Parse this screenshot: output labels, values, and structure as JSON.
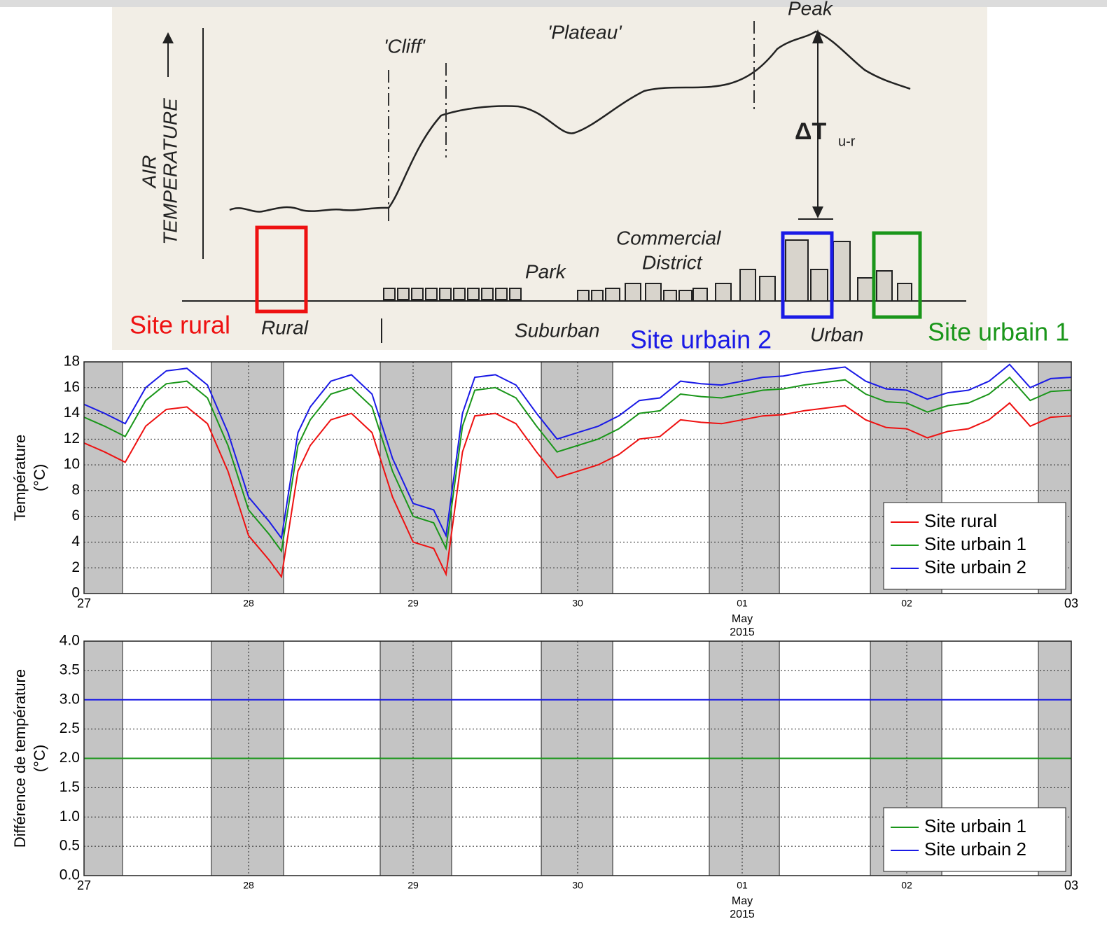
{
  "diagram": {
    "axis_label_1": "AIR",
    "axis_label_2": "TEMPERATURE",
    "cliff": "'Cliff'",
    "plateau": "'Plateau'",
    "peak": "Peak",
    "delta": "ΔT",
    "delta_sub": "u-r",
    "park": "Park",
    "commercial": "Commercial",
    "district": "District",
    "rural": "Rural",
    "suburban": "Suburban",
    "urban": "Urban",
    "sites": [
      {
        "label": "Site rural",
        "color": "#ee1111"
      },
      {
        "label": "Site urbain 2",
        "color": "#1a1ae6"
      },
      {
        "label": "Site urbain 1",
        "color": "#1a961a"
      }
    ]
  },
  "chart_data": [
    {
      "type": "line",
      "ylabel": [
        "Température",
        "(°C)"
      ],
      "x": [
        0,
        0.125,
        0.25,
        0.375,
        0.5,
        0.625,
        0.75,
        0.875,
        1.0,
        1.125,
        1.2,
        1.3,
        1.375,
        1.5,
        1.625,
        1.75,
        1.875,
        2.0,
        2.125,
        2.2,
        2.3,
        2.375,
        2.5,
        2.625,
        2.75,
        2.875,
        3.0,
        3.125,
        3.25,
        3.375,
        3.5,
        3.625,
        3.75,
        3.875,
        4.0,
        4.125,
        4.25,
        4.375,
        4.5,
        4.625,
        4.75,
        4.875,
        5.0,
        5.125,
        5.25,
        5.375,
        5.5,
        5.625,
        5.75,
        5.875,
        6.0
      ],
      "series": [
        {
          "name": "Site rural",
          "color": "#ee1111",
          "values": [
            11.7,
            11.0,
            10.2,
            13.0,
            14.3,
            14.5,
            13.2,
            9.5,
            4.5,
            2.6,
            1.3,
            9.5,
            11.5,
            13.5,
            14.0,
            12.5,
            7.5,
            4.0,
            3.5,
            1.5,
            11.0,
            13.8,
            14.0,
            13.2,
            11.0,
            9.0,
            9.5,
            10.0,
            10.8,
            12.0,
            12.2,
            13.5,
            13.3,
            13.2,
            13.5,
            13.8,
            13.9,
            14.2,
            14.4,
            14.6,
            13.5,
            12.9,
            12.8,
            12.1,
            12.6,
            12.8,
            13.5,
            14.8,
            13.0,
            13.7,
            13.8
          ]
        },
        {
          "name": "Site urbain 1",
          "color": "#1a961a",
          "values": [
            13.7,
            13.0,
            12.2,
            15.0,
            16.3,
            16.5,
            15.2,
            11.5,
            6.5,
            4.6,
            3.3,
            11.5,
            13.5,
            15.5,
            16.0,
            14.5,
            9.5,
            6.0,
            5.5,
            3.5,
            13.0,
            15.8,
            16.0,
            15.2,
            13.0,
            11.0,
            11.5,
            12.0,
            12.8,
            14.0,
            14.2,
            15.5,
            15.3,
            15.2,
            15.5,
            15.8,
            15.9,
            16.2,
            16.4,
            16.6,
            15.5,
            14.9,
            14.8,
            14.1,
            14.6,
            14.8,
            15.5,
            16.8,
            15.0,
            15.7,
            15.8
          ]
        },
        {
          "name": "Site urbain 2",
          "color": "#1a1ae6",
          "values": [
            14.7,
            14.0,
            13.2,
            16.0,
            17.3,
            17.5,
            16.2,
            12.5,
            7.5,
            5.6,
            4.3,
            12.5,
            14.5,
            16.5,
            17.0,
            15.5,
            10.5,
            7.0,
            6.5,
            4.5,
            14.0,
            16.8,
            17.0,
            16.2,
            14.0,
            12.0,
            12.5,
            13.0,
            13.8,
            15.0,
            15.2,
            16.5,
            16.3,
            16.2,
            16.5,
            16.8,
            16.9,
            17.2,
            17.4,
            17.6,
            16.5,
            15.9,
            15.8,
            15.1,
            15.6,
            15.8,
            16.5,
            17.8,
            16.0,
            16.7,
            16.8
          ]
        }
      ],
      "xlim": [
        0,
        6
      ],
      "xticks": [
        {
          "value": 0,
          "label": "27"
        },
        {
          "value": 1,
          "label": "28"
        },
        {
          "value": 2,
          "label": "29"
        },
        {
          "value": 3,
          "label": "30"
        },
        {
          "value": 4,
          "label": "01"
        },
        {
          "value": 5,
          "label": "02"
        },
        {
          "value": 6,
          "label": "03"
        }
      ],
      "x_month": "May",
      "x_year": "2015",
      "ylim": [
        0,
        18
      ],
      "yticks": [
        0,
        2,
        4,
        6,
        8,
        10,
        12,
        14,
        16,
        18
      ],
      "night_spans": [
        [
          0,
          0.234
        ],
        [
          0.774,
          1.213
        ],
        [
          1.8,
          2.234
        ],
        [
          2.779,
          3.213
        ],
        [
          3.8,
          4.226
        ],
        [
          4.779,
          5.213
        ],
        [
          5.8,
          6
        ]
      ],
      "grid": true,
      "legend": "lower right"
    },
    {
      "type": "line",
      "ylabel": [
        "Différence de température",
        "(°C)"
      ],
      "x": [
        0,
        6
      ],
      "series": [
        {
          "name": "Site urbain 1",
          "color": "#1a961a",
          "values": [
            2,
            2
          ]
        },
        {
          "name": "Site urbain 2",
          "color": "#1a1ae6",
          "values": [
            3,
            3
          ]
        }
      ],
      "xlim": [
        0,
        6
      ],
      "xticks": [
        {
          "value": 0,
          "label": "27"
        },
        {
          "value": 1,
          "label": "28"
        },
        {
          "value": 2,
          "label": "29"
        },
        {
          "value": 3,
          "label": "30"
        },
        {
          "value": 4,
          "label": "01"
        },
        {
          "value": 5,
          "label": "02"
        },
        {
          "value": 6,
          "label": "03"
        }
      ],
      "x_month": "May",
      "x_year": "2015",
      "ylim": [
        0,
        4
      ],
      "yticks": [
        {
          "value": 0,
          "label": "0.0"
        },
        {
          "value": 0.5,
          "label": "0.5"
        },
        {
          "value": 1,
          "label": "1.0"
        },
        {
          "value": 1.5,
          "label": "1.5"
        },
        {
          "value": 2,
          "label": "2.0"
        },
        {
          "value": 2.5,
          "label": "2.5"
        },
        {
          "value": 3,
          "label": "3.0"
        },
        {
          "value": 3.5,
          "label": "3.5"
        },
        {
          "value": 4,
          "label": "4.0"
        }
      ],
      "night_spans": [
        [
          0,
          0.234
        ],
        [
          0.774,
          1.213
        ],
        [
          1.8,
          2.234
        ],
        [
          2.779,
          3.213
        ],
        [
          3.8,
          4.226
        ],
        [
          4.779,
          5.213
        ],
        [
          5.8,
          6
        ]
      ],
      "grid": true,
      "legend": "lower right"
    }
  ]
}
